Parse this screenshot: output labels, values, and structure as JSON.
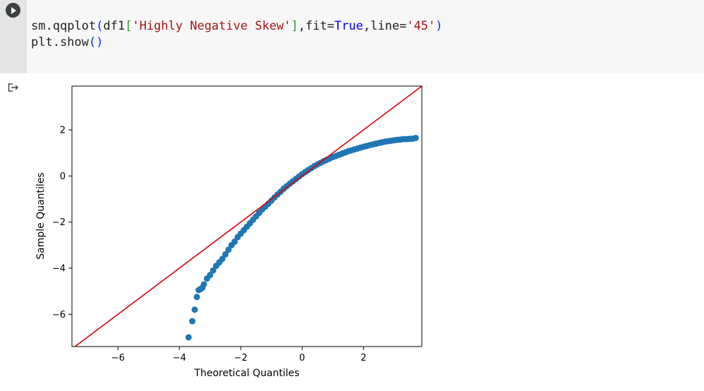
{
  "code": {
    "line1": {
      "t1": "sm.qqplot",
      "p1": "(",
      "t2": "df1",
      "p2": "[",
      "s1": "'Highly Negative Skew'",
      "p3": "]",
      "t3": ",fit=",
      "k1": "True",
      "t4": ",line=",
      "s2": "'45'",
      "p4": ")"
    },
    "line2": {
      "t1": "plt.show",
      "p1": "()"
    }
  },
  "icons": {
    "run": "play-icon",
    "output": "output-arrow-icon"
  },
  "colors": {
    "points": "#1f77b4",
    "line": "#e00000",
    "axes": "#000000"
  },
  "chart_data": {
    "type": "scatter",
    "xlabel": "Theoretical Quantiles",
    "ylabel": "Sample Quantiles",
    "xlim": [
      -7.5,
      3.9
    ],
    "ylim": [
      -7.4,
      3.9
    ],
    "xticks": [
      -6,
      -4,
      -2,
      0,
      2
    ],
    "yticks": [
      2,
      0,
      -2,
      -4,
      -6
    ],
    "xtick_labels": [
      "−6",
      "−4",
      "−2",
      "0",
      "2"
    ],
    "ytick_labels": [
      "2",
      "0",
      "−2",
      "−4",
      "−6"
    ],
    "reference_line": {
      "type": "45-degree",
      "slope": 1,
      "intercept": 0
    },
    "series": [
      {
        "x": [
          -3.7,
          -3.58,
          -3.5,
          -3.43,
          -3.37,
          -3.3,
          -3.25,
          -3.2,
          -3.1,
          -3.0,
          -2.9,
          -2.8,
          -2.7,
          -2.6,
          -2.5,
          -2.4,
          -2.3,
          -2.2,
          -2.1,
          -2.0,
          -1.9,
          -1.8,
          -1.7,
          -1.6,
          -1.5,
          -1.4,
          -1.3,
          -1.2,
          -1.1,
          -1.0,
          -0.9,
          -0.8,
          -0.7,
          -0.6,
          -0.5,
          -0.4,
          -0.3,
          -0.2,
          -0.1,
          0.0,
          0.1,
          0.2,
          0.3,
          0.4,
          0.5,
          0.6,
          0.7,
          0.8,
          0.9,
          1.0,
          1.1,
          1.2,
          1.3,
          1.4,
          1.5,
          1.6,
          1.7,
          1.8,
          1.9,
          2.0,
          2.1,
          2.2,
          2.3,
          2.4,
          2.5,
          2.6,
          2.7,
          2.8,
          2.9,
          3.0,
          3.1,
          3.2,
          3.3,
          3.4,
          3.5,
          3.6,
          3.7
        ],
        "y": [
          -7.0,
          -6.3,
          -5.8,
          -5.25,
          -4.95,
          -4.9,
          -4.85,
          -4.7,
          -4.45,
          -4.3,
          -4.1,
          -3.9,
          -3.75,
          -3.6,
          -3.4,
          -3.2,
          -3.0,
          -2.85,
          -2.65,
          -2.5,
          -2.35,
          -2.2,
          -2.05,
          -1.9,
          -1.75,
          -1.6,
          -1.45,
          -1.33,
          -1.2,
          -1.07,
          -0.93,
          -0.8,
          -0.68,
          -0.55,
          -0.44,
          -0.33,
          -0.23,
          -0.13,
          -0.02,
          0.08,
          0.17,
          0.26,
          0.34,
          0.43,
          0.5,
          0.57,
          0.64,
          0.7,
          0.76,
          0.82,
          0.87,
          0.92,
          0.97,
          1.02,
          1.07,
          1.11,
          1.15,
          1.19,
          1.23,
          1.27,
          1.3,
          1.34,
          1.37,
          1.4,
          1.43,
          1.46,
          1.49,
          1.51,
          1.53,
          1.55,
          1.57,
          1.58,
          1.6,
          1.6,
          1.61,
          1.62,
          1.65
        ]
      }
    ]
  }
}
